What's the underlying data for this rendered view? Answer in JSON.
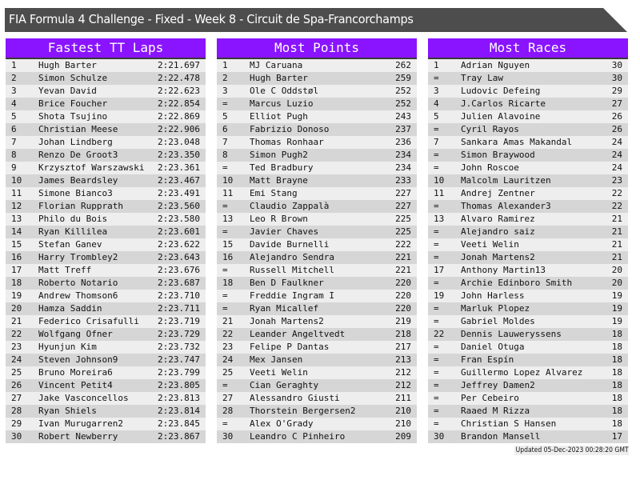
{
  "title": "FIA Formula 4 Challenge - Fixed - Week 8 - Circuit de Spa-Francorchamps",
  "colors": {
    "title_bar": "#4d4d4d",
    "header": "#8a14ff",
    "row_light": "#eeeeee",
    "row_dark": "#d6d6d6"
  },
  "tables": [
    {
      "title": "Fastest TT Laps",
      "rows": [
        [
          "1",
          "Hugh Barter",
          "2:21.697"
        ],
        [
          "2",
          "Simon Schulze",
          "2:22.478"
        ],
        [
          "3",
          "Yevan David",
          "2:22.623"
        ],
        [
          "4",
          "Brice Foucher",
          "2:22.854"
        ],
        [
          "5",
          "Shota Tsujino",
          "2:22.869"
        ],
        [
          "6",
          "Christian Meese",
          "2:22.906"
        ],
        [
          "7",
          "Johan Lindberg",
          "2:23.048"
        ],
        [
          "8",
          "Renzo De Groot3",
          "2:23.350"
        ],
        [
          "9",
          "Krzysztof Warszawski",
          "2:23.361"
        ],
        [
          "10",
          "James Beardsley",
          "2:23.467"
        ],
        [
          "11",
          "Simone Bianco3",
          "2:23.491"
        ],
        [
          "12",
          "Florian Rupprath",
          "2:23.560"
        ],
        [
          "13",
          "Philo du Bois",
          "2:23.580"
        ],
        [
          "14",
          "Ryan Killilea",
          "2:23.601"
        ],
        [
          "15",
          "Stefan Ganev",
          "2:23.622"
        ],
        [
          "16",
          "Harry Trombley2",
          "2:23.643"
        ],
        [
          "17",
          "Matt Treff",
          "2:23.676"
        ],
        [
          "18",
          "Roberto Notario",
          "2:23.687"
        ],
        [
          "19",
          "Andrew Thomson6",
          "2:23.710"
        ],
        [
          "20",
          "Hamza Saddin",
          "2:23.711"
        ],
        [
          "21",
          "Federico Crisafulli",
          "2:23.719"
        ],
        [
          "22",
          "Wolfgang Ofner",
          "2:23.729"
        ],
        [
          "23",
          "Hyunjun Kim",
          "2:23.732"
        ],
        [
          "24",
          "Steven Johnson9",
          "2:23.747"
        ],
        [
          "25",
          "Bruno Moreira6",
          "2:23.799"
        ],
        [
          "26",
          "Vincent Petit4",
          "2:23.805"
        ],
        [
          "27",
          "Jake Vasconcellos",
          "2:23.813"
        ],
        [
          "28",
          "Ryan Shiels",
          "2:23.814"
        ],
        [
          "29",
          "Ivan Murugarren2",
          "2:23.845"
        ],
        [
          "30",
          "Robert Newberry",
          "2:23.867"
        ]
      ]
    },
    {
      "title": "Most Points",
      "rows": [
        [
          "1",
          "MJ Caruana",
          "262"
        ],
        [
          "2",
          "Hugh Barter",
          "259"
        ],
        [
          "3",
          "Ole C Oddstøl",
          "252"
        ],
        [
          "=",
          "Marcus Luzio",
          "252"
        ],
        [
          "5",
          "Elliot Pugh",
          "243"
        ],
        [
          "6",
          "Fabrizio Donoso",
          "237"
        ],
        [
          "7",
          "Thomas Ronhaar",
          "236"
        ],
        [
          "8",
          "Simon Pugh2",
          "234"
        ],
        [
          "=",
          "Ted Bradbury",
          "234"
        ],
        [
          "10",
          "Matt Brayne",
          "233"
        ],
        [
          "11",
          "Emi Stang",
          "227"
        ],
        [
          "=",
          "Claudio Zappalà",
          "227"
        ],
        [
          "13",
          "Leo R Brown",
          "225"
        ],
        [
          "=",
          "Javier Chaves",
          "225"
        ],
        [
          "15",
          "Davide Burnelli",
          "222"
        ],
        [
          "16",
          "Alejandro Sendra",
          "221"
        ],
        [
          "=",
          "Russell Mitchell",
          "221"
        ],
        [
          "18",
          "Ben D Faulkner",
          "220"
        ],
        [
          "=",
          "Freddie Ingram I",
          "220"
        ],
        [
          "=",
          "Ryan Micallef",
          "220"
        ],
        [
          "21",
          "Jonah Martens2",
          "219"
        ],
        [
          "22",
          "Leander Angeltvedt",
          "218"
        ],
        [
          "23",
          "Felipe P Dantas",
          "217"
        ],
        [
          "24",
          "Mex Jansen",
          "213"
        ],
        [
          "25",
          "Veeti Welin",
          "212"
        ],
        [
          "=",
          "Cian Geraghty",
          "212"
        ],
        [
          "27",
          "Alessandro Giusti",
          "211"
        ],
        [
          "28",
          "Thorstein Bergersen2",
          "210"
        ],
        [
          "=",
          "Alex O'Grady",
          "210"
        ],
        [
          "30",
          "Leandro C Pinheiro",
          "209"
        ]
      ]
    },
    {
      "title": "Most Races",
      "rows": [
        [
          "1",
          "Adrian Nguyen",
          "30"
        ],
        [
          "=",
          "Tray Law",
          "30"
        ],
        [
          "3",
          "Ludovic Defeing",
          "29"
        ],
        [
          "4",
          "J.Carlos Ricarte",
          "27"
        ],
        [
          "5",
          "Julien Alavoine",
          "26"
        ],
        [
          "=",
          "Cyril Rayos",
          "26"
        ],
        [
          "7",
          "Sankara Amas Makandal",
          "24"
        ],
        [
          "=",
          "Simon Braywood",
          "24"
        ],
        [
          "=",
          "John Roscoe",
          "24"
        ],
        [
          "10",
          "Malcolm Lauritzen",
          "23"
        ],
        [
          "11",
          "Andrej Zentner",
          "22"
        ],
        [
          "=",
          "Thomas Alexander3",
          "22"
        ],
        [
          "13",
          "Alvaro Ramirez",
          "21"
        ],
        [
          "=",
          "Alejandro saiz",
          "21"
        ],
        [
          "=",
          "Veeti Welin",
          "21"
        ],
        [
          "=",
          "Jonah Martens2",
          "21"
        ],
        [
          "17",
          "Anthony Martin13",
          "20"
        ],
        [
          "=",
          "Archie Edinboro Smith",
          "20"
        ],
        [
          "19",
          "John Harless",
          "19"
        ],
        [
          "=",
          "Marluk Plopez",
          "19"
        ],
        [
          "=",
          "Gabriel Moldes",
          "19"
        ],
        [
          "22",
          "Dennis Lauweryssens",
          "18"
        ],
        [
          "=",
          "Daniel Otuga",
          "18"
        ],
        [
          "=",
          "Fran Espín",
          "18"
        ],
        [
          "=",
          "Guillermo Lopez Alvarez",
          "18"
        ],
        [
          "=",
          "Jeffrey Damen2",
          "18"
        ],
        [
          "=",
          "Per Cebeiro",
          "18"
        ],
        [
          "=",
          "Raaed M Rizza",
          "18"
        ],
        [
          "=",
          "Christian S Hansen",
          "18"
        ],
        [
          "30",
          "Brandon Mansell",
          "17"
        ]
      ]
    }
  ],
  "updated": "Updated 05-Dec-2023 00:28:20 GMT"
}
